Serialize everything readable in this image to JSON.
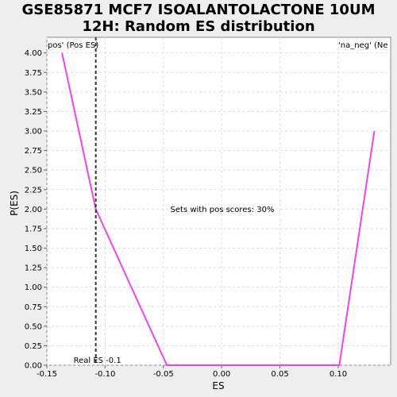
{
  "chart_data": {
    "type": "line",
    "title_line1": "GSE85871 MCF7 ISOALANTOLACTONE 10UM",
    "title_line2": "12H: Random ES distribution",
    "xlabel": "ES",
    "ylabel": "P(ES)",
    "xlim": [
      -0.15,
      0.145
    ],
    "ylim": [
      0,
      4.2
    ],
    "xticks": [
      "-0.15",
      "-0.10",
      "-0.05",
      "0.00",
      "0.05",
      "0.10"
    ],
    "xtick_values": [
      -0.15,
      -0.1,
      -0.05,
      0.0,
      0.05,
      0.1
    ],
    "yticks": [
      "0.00",
      "0.25",
      "0.50",
      "0.75",
      "1.00",
      "1.25",
      "1.50",
      "1.75",
      "2.00",
      "2.25",
      "2.50",
      "2.75",
      "3.00",
      "3.25",
      "3.50",
      "3.75",
      "4.00"
    ],
    "ytick_values": [
      0,
      0.25,
      0.5,
      0.75,
      1,
      1.25,
      1.5,
      1.75,
      2,
      2.25,
      2.5,
      2.75,
      3,
      3.25,
      3.5,
      3.75,
      4
    ],
    "grid": true,
    "series": [
      {
        "color": "#ee44ee",
        "x": [
          -0.137,
          -0.108,
          -0.047,
          0.101,
          0.131
        ],
        "y": [
          4.0,
          2.0,
          0.0,
          0.0,
          3.0
        ]
      }
    ],
    "real_es": {
      "value": -0.108,
      "label": "Real ES -0.1"
    },
    "annotations": {
      "pos_label": "pos' (Pos ES)",
      "neg_label": "'na_neg' (Ne",
      "center_text": "Sets with pos scores: 30%"
    },
    "colors": {
      "pos_label": "#cc3333",
      "neg_label": "#3333cc",
      "real_es_line": "#333333",
      "grid": "#dddddd"
    }
  }
}
